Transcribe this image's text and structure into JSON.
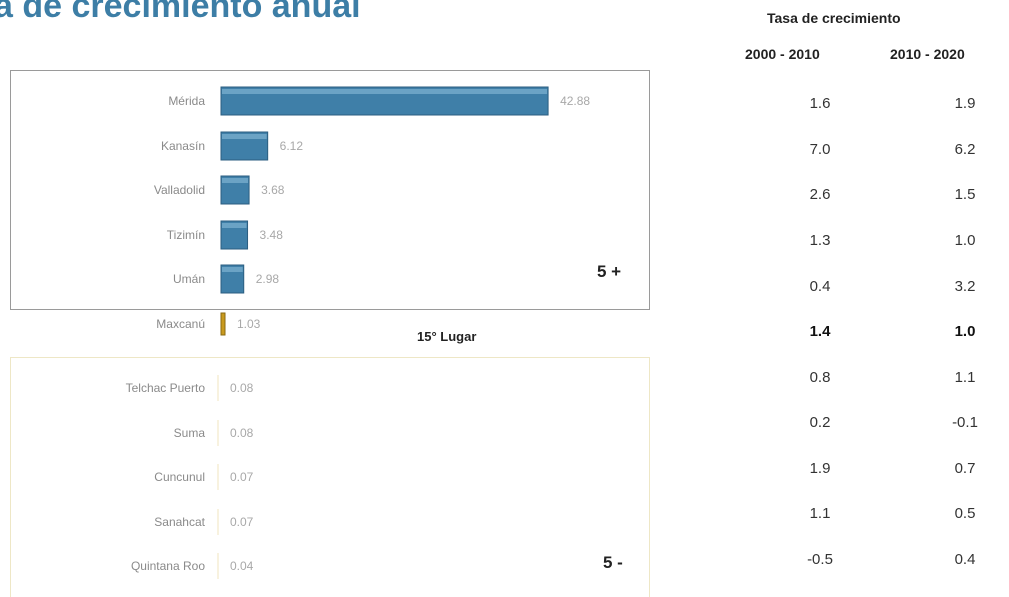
{
  "title_fragment": "a de crecimiento anual",
  "title_fragment_line2": ")",
  "tags": {
    "top": "5 +",
    "bottom": "5 -",
    "lugar": "15° Lugar"
  },
  "table": {
    "title": "Tasa de crecimiento",
    "col1_header": "2000 - 2010",
    "col2_header": "2010 - 2020",
    "rows": [
      {
        "c1": "1.6",
        "c2": "1.9"
      },
      {
        "c1": "7.0",
        "c2": "6.2"
      },
      {
        "c1": "2.6",
        "c2": "1.5"
      },
      {
        "c1": "1.3",
        "c2": "1.0"
      },
      {
        "c1": "0.4",
        "c2": "3.2"
      },
      {
        "c1": "1.4",
        "c2": "1.0"
      },
      {
        "c1": "0.8",
        "c2": "1.1"
      },
      {
        "c1": "0.2",
        "c2": "-0.1"
      },
      {
        "c1": "1.9",
        "c2": "0.7"
      },
      {
        "c1": "1.1",
        "c2": "0.5"
      },
      {
        "c1": "-0.5",
        "c2": "0.4"
      }
    ]
  },
  "chart_data": {
    "type": "bar",
    "orientation": "horizontal",
    "categories": [
      "Mérida",
      "Kanasín",
      "Valladolid",
      "Tizimín",
      "Umán",
      "Maxcanú",
      "Telchac Puerto",
      "Suma",
      "Cuncunul",
      "Sanahcat",
      "Quintana Roo"
    ],
    "values": [
      42.88,
      6.12,
      3.68,
      3.48,
      2.98,
      1.03,
      0.08,
      0.08,
      0.07,
      0.07,
      0.04
    ],
    "value_labels": [
      "42.88",
      "6.12",
      "3.68",
      "3.48",
      "2.98",
      "1.03",
      "0.08",
      "0.08",
      "0.07",
      "0.07",
      "0.04"
    ],
    "bar_colors": [
      "#3f7fa8",
      "#3f7fa8",
      "#3f7fa8",
      "#3f7fa8",
      "#3f7fa8",
      "#c99a1e",
      "#3f7fa8",
      "#3f7fa8",
      "#3f7fa8",
      "#3f7fa8",
      "#3f7fa8"
    ],
    "highlight_category": "Maxcanú",
    "xlim": [
      0,
      43
    ],
    "grid": false,
    "legend": "none"
  }
}
